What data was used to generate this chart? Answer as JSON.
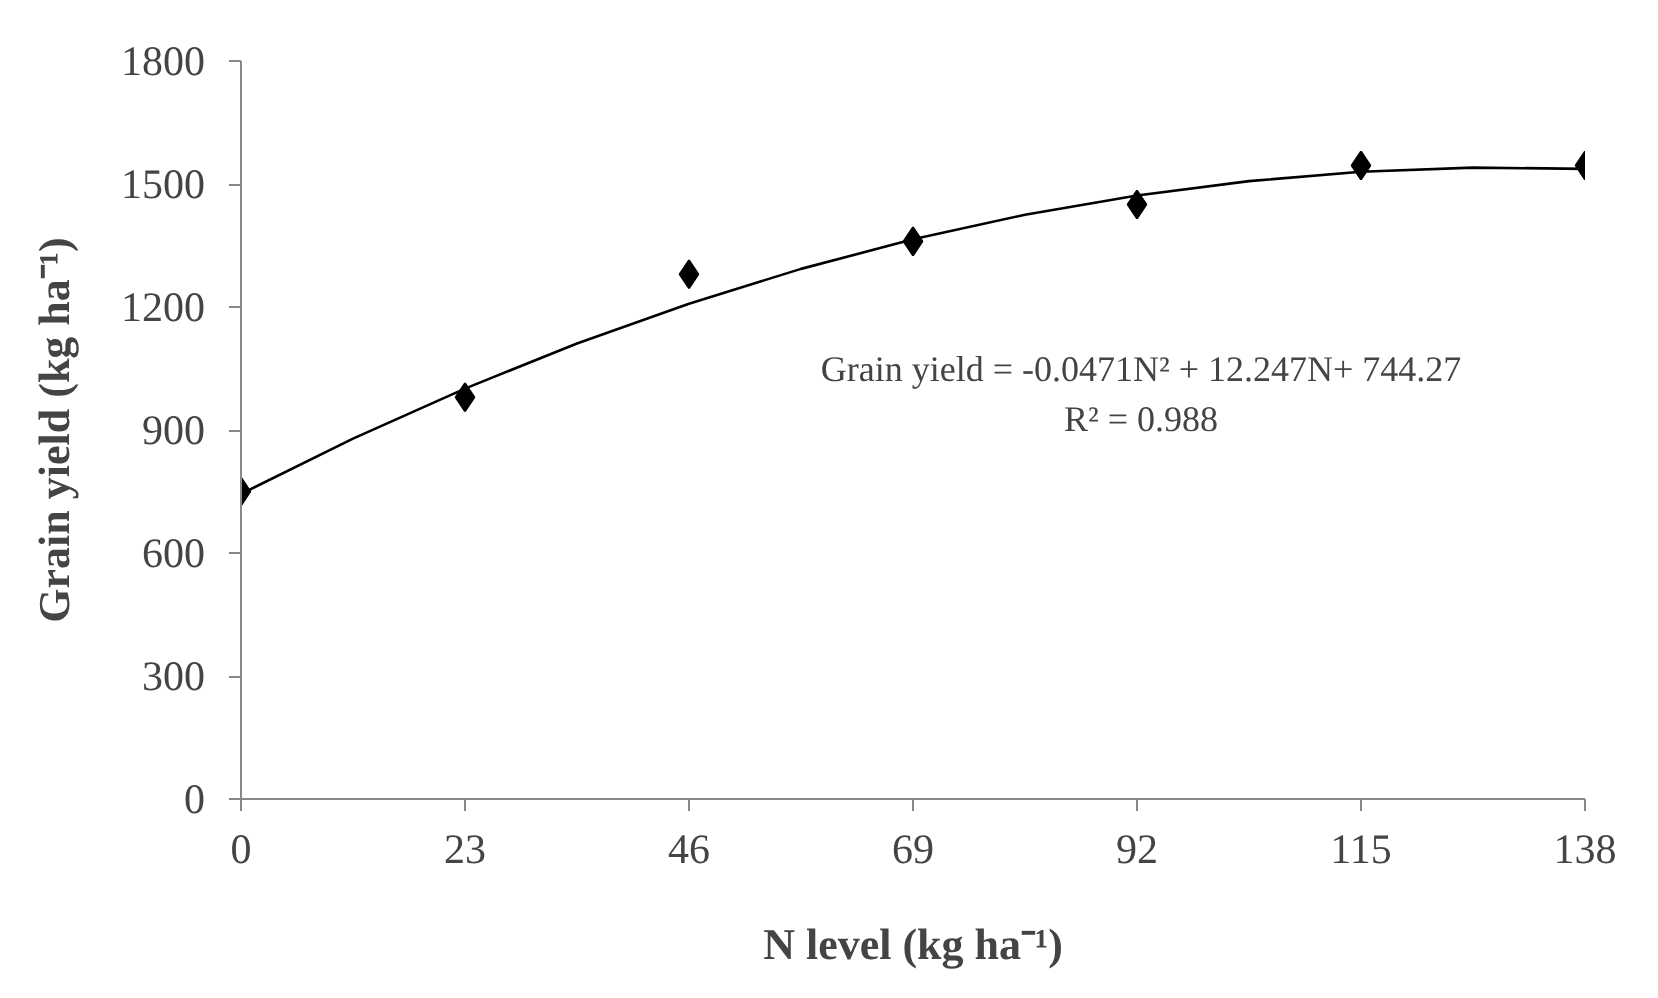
{
  "chart_data": {
    "type": "scatter",
    "xlabel": "N level (kg ha⁻¹)",
    "ylabel": "Grain yield (kg ha⁻¹)",
    "xlim": [
      0,
      138
    ],
    "xticks": [
      0,
      23,
      46,
      69,
      92,
      115,
      138
    ],
    "ylim": [
      0,
      1800
    ],
    "yticks": [
      0,
      300,
      600,
      900,
      1200,
      1500,
      1800
    ],
    "grid": false,
    "series": [
      {
        "marker": "diamond",
        "color": "#000000",
        "x": [
          0,
          23,
          46,
          69,
          92,
          115,
          138
        ],
        "values": [
          750,
          980,
          1280,
          1360,
          1450,
          1545,
          1545
        ]
      },
      {
        "type": "line",
        "marker": "none",
        "line_style": "solid",
        "color": "#000000",
        "x": [
          0,
          11.5,
          23,
          34.5,
          46,
          57.5,
          69,
          80.5,
          92,
          103.5,
          115,
          126.5,
          138
        ],
        "values": [
          744,
          879,
          1001,
          1111,
          1208,
          1293,
          1365,
          1425,
          1472,
          1507,
          1530,
          1540,
          1537
        ]
      }
    ],
    "annotations": [
      "Grain yield = -0.0471N² + 12.247N+ 744.27",
      "R² = 0.988"
    ]
  }
}
